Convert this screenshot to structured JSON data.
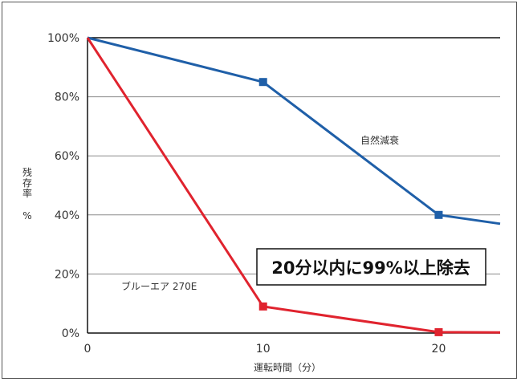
{
  "chart_data": {
    "type": "line",
    "title": "",
    "xlabel": "運転時間（分）",
    "ylabel_chars": [
      "残",
      "存",
      "率"
    ],
    "ylabel_unit": "%",
    "xlim": [
      0,
      23.5
    ],
    "ylim": [
      0,
      100
    ],
    "x_ticks": [
      {
        "value": 0,
        "label": "0"
      },
      {
        "value": 10,
        "label": "10"
      },
      {
        "value": 20,
        "label": "20"
      }
    ],
    "y_ticks": [
      {
        "value": 0,
        "label": "0%"
      },
      {
        "value": 20,
        "label": "20%"
      },
      {
        "value": 40,
        "label": "40%"
      },
      {
        "value": 60,
        "label": "60%"
      },
      {
        "value": 80,
        "label": "80%"
      },
      {
        "value": 100,
        "label": "100%"
      }
    ],
    "grid": "horizontal",
    "series": [
      {
        "name": "自然減衰",
        "color": "#1f5fa8",
        "x": [
          0,
          10,
          20,
          23.5
        ],
        "y": [
          100,
          85,
          40,
          37
        ],
        "markers": [
          10,
          20
        ]
      },
      {
        "name": "ブルーエア 270E",
        "color": "#e0232e",
        "x": [
          0,
          10,
          20,
          23.5
        ],
        "y": [
          100,
          9,
          0.3,
          0.2
        ],
        "markers": [
          10,
          20
        ]
      }
    ],
    "annotation": "20分以内に99%以上除去"
  }
}
